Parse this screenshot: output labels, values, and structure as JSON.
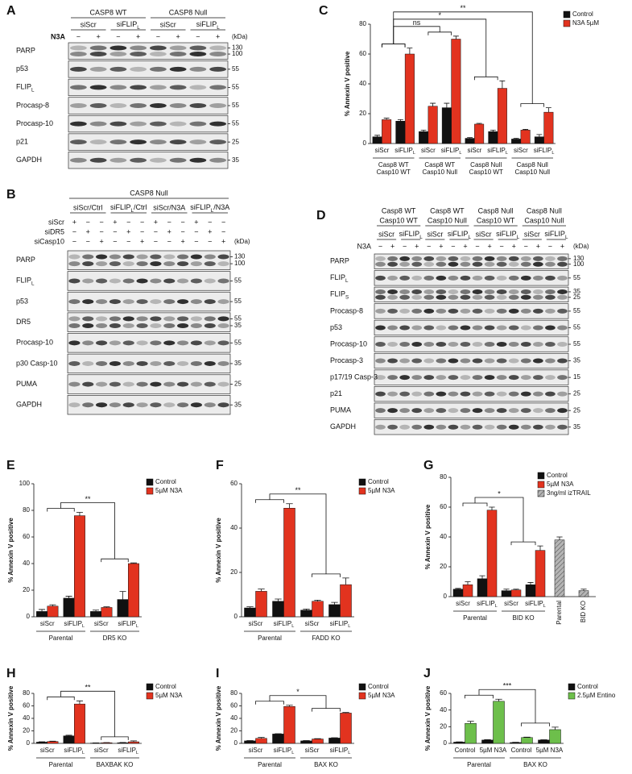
{
  "blots": [
    {
      "panel": "A",
      "groups": [
        "CASP8 WT",
        "CASP8 Null"
      ],
      "conditions": [
        "siScr",
        "siFLIPL",
        "siScr",
        "siFLIPL"
      ],
      "treatments": [
        {
          "name": "N3A",
          "signs": [
            "−",
            "+",
            "−",
            "+",
            "−",
            "+",
            "−",
            "+"
          ]
        }
      ],
      "kda": "(kDa)",
      "rows": [
        {
          "name": "PARP",
          "markers": [
            130,
            100
          ]
        },
        {
          "name": "p53",
          "markers": [
            55
          ]
        },
        {
          "name": "FLIPL",
          "markers": [
            55
          ]
        },
        {
          "name": "Procasp-8",
          "markers": [
            55
          ]
        },
        {
          "name": "Procasp-10",
          "markers": [
            55
          ]
        },
        {
          "name": "p21",
          "markers": [
            25
          ]
        },
        {
          "name": "GAPDH",
          "markers": [
            35
          ]
        }
      ]
    },
    {
      "panel": "B",
      "title": "CASP8 Null",
      "conditions": [
        "siScr/Ctrl",
        "siFLIPL/Ctrl",
        "siScr/N3A",
        "siFLIPL/N3A"
      ],
      "treatments": [
        {
          "name": "siScr",
          "signs": [
            "+",
            "−",
            "−",
            "+",
            "−",
            "−",
            "+",
            "−",
            "−",
            "+",
            "−",
            "−"
          ]
        },
        {
          "name": "siDR5",
          "signs": [
            "−",
            "+",
            "−",
            "−",
            "+",
            "−",
            "−",
            "+",
            "−",
            "−",
            "+",
            "−"
          ]
        },
        {
          "name": "siCasp10",
          "signs": [
            "−",
            "−",
            "+",
            "−",
            "−",
            "+",
            "−",
            "−",
            "+",
            "−",
            "−",
            "+"
          ]
        }
      ],
      "kda": "(kDa)",
      "rows": [
        {
          "name": "PARP",
          "markers": [
            130,
            100
          ]
        },
        {
          "name": "FLIPL",
          "markers": [
            55
          ]
        },
        {
          "name": "p53",
          "markers": [
            55
          ]
        },
        {
          "name": "DR5",
          "markers": [
            55,
            35
          ]
        },
        {
          "name": "Procasp-10",
          "markers": [
            55
          ]
        },
        {
          "name": "p30 Casp-10",
          "markers": [
            35
          ]
        },
        {
          "name": "PUMA",
          "markers": [
            25
          ]
        },
        {
          "name": "GAPDH",
          "markers": [
            35
          ]
        }
      ]
    },
    {
      "panel": "D",
      "groups": [
        [
          "Casp8 WT",
          "Casp10 WT"
        ],
        [
          "Casp8 WT",
          "Casp10 Null"
        ],
        [
          "Casp8 Null",
          "Casp10 WT"
        ],
        [
          "Casp8 Null",
          "Casp10 Null"
        ]
      ],
      "conditions": [
        "siScr",
        "siFLIPL",
        "siScr",
        "siFLIPL",
        "siScr",
        "siFLIPL",
        "siScr",
        "siFLIPL"
      ],
      "treatments": [
        {
          "name": "N3A",
          "signs": [
            "−",
            "+",
            "−",
            "+",
            "−",
            "+",
            "−",
            "+",
            "−",
            "+",
            "−",
            "+",
            "−",
            "+",
            "−",
            "+"
          ]
        }
      ],
      "kda": "(kDa)",
      "rows": [
        {
          "name": "PARP",
          "markers": [
            130,
            100
          ]
        },
        {
          "name": "FLIPL",
          "markers": [
            55
          ]
        },
        {
          "name": "FLIPS",
          "markers": [
            35,
            25
          ]
        },
        {
          "name": "Procasp-8",
          "markers": [
            55
          ]
        },
        {
          "name": "p53",
          "markers": [
            55
          ]
        },
        {
          "name": "Procasp-10",
          "markers": [
            55
          ]
        },
        {
          "name": "Procasp-3",
          "markers": [
            35
          ]
        },
        {
          "name": "p17/19 Casp-3",
          "markers": [
            15
          ]
        },
        {
          "name": "p21",
          "markers": [
            25
          ]
        },
        {
          "name": "PUMA",
          "markers": [
            25
          ]
        },
        {
          "name": "GAPDH",
          "markers": [
            35
          ]
        }
      ]
    }
  ],
  "chart_data": [
    {
      "panel": "C",
      "type": "bar",
      "ylabel": "% Annexin V positive",
      "ylim": [
        0,
        80
      ],
      "yticks": [
        0,
        20,
        40,
        60,
        80
      ],
      "categories": [
        "siScr",
        "siFLIPL",
        "siScr",
        "siFLIPL",
        "siScr",
        "siFLIPL",
        "siScr",
        "siFLIPL"
      ],
      "series": [
        {
          "name": "Control",
          "color": "#111111",
          "values": [
            4.5,
            15,
            8,
            24,
            3.5,
            8,
            3,
            4.5
          ],
          "errors": [
            1,
            1,
            1,
            3,
            0.5,
            1,
            0.5,
            1.5
          ]
        },
        {
          "name": "N3A 5µM",
          "color": "#e2331f",
          "values": [
            16,
            60,
            25,
            70,
            13,
            37,
            9,
            21
          ],
          "errors": [
            1,
            4,
            2,
            2,
            0.5,
            5,
            0.5,
            3
          ]
        }
      ],
      "groups": [
        [
          "Casp8 WT",
          "Casp10 WT"
        ],
        [
          "Casp8 WT",
          "Casp10 Null"
        ],
        [
          "Casp8 Null",
          "Casp10 WT"
        ],
        [
          "Casp8 Null",
          "Casp10 Null"
        ]
      ],
      "annotations": [
        "ns",
        "*",
        "**"
      ]
    },
    {
      "panel": "E",
      "type": "bar",
      "ylabel": "% Annexin V positive",
      "ylim": [
        0,
        100
      ],
      "yticks": [
        0,
        20,
        40,
        60,
        80,
        100
      ],
      "categories": [
        "siScr",
        "siFLIPL",
        "siScr",
        "siFLIPL"
      ],
      "series": [
        {
          "name": "Control",
          "color": "#111111",
          "values": [
            4,
            14,
            4,
            13
          ],
          "errors": [
            1.5,
            1.5,
            1,
            6
          ]
        },
        {
          "name": "5µM N3A",
          "color": "#e2331f",
          "values": [
            8,
            76,
            7,
            40
          ],
          "errors": [
            1,
            2.5,
            0.5,
            0.5
          ]
        }
      ],
      "groups": [
        "Parental",
        "DR5 KO"
      ],
      "annotations": [
        "**"
      ]
    },
    {
      "panel": "F",
      "type": "bar",
      "ylabel": "% Annexin V positive",
      "ylim": [
        0,
        60
      ],
      "yticks": [
        0,
        20,
        40,
        60
      ],
      "categories": [
        "siScr",
        "siFLIPL",
        "siScr",
        "siFLIPL"
      ],
      "series": [
        {
          "name": "Control",
          "color": "#111111",
          "values": [
            4,
            7,
            3,
            5.5
          ],
          "errors": [
            0.5,
            1,
            0.5,
            1
          ]
        },
        {
          "name": "5µM N3A",
          "color": "#e2331f",
          "values": [
            11.5,
            49,
            7,
            14.5
          ],
          "errors": [
            1,
            2,
            0.5,
            3
          ]
        }
      ],
      "groups": [
        "Parental",
        "FADD KO"
      ],
      "annotations": [
        "**"
      ]
    },
    {
      "panel": "G",
      "type": "bar",
      "ylabel": "% Annexin V positive",
      "ylim": [
        0,
        80
      ],
      "yticks": [
        0,
        20,
        40,
        60,
        80
      ],
      "categories": [
        "siScr",
        "siFLIPL",
        "siScr",
        "siFLIPL",
        "Parental",
        "BID KO"
      ],
      "series": [
        {
          "name": "Control",
          "color": "#111111",
          "values": [
            5,
            12,
            4,
            8,
            null,
            null
          ],
          "errors": [
            0.5,
            2,
            1,
            1.5,
            null,
            null
          ]
        },
        {
          "name": "5µM N3A",
          "color": "#e2331f",
          "values": [
            8,
            58,
            4.5,
            31,
            null,
            null
          ],
          "errors": [
            2,
            2,
            0.5,
            3,
            null,
            null
          ]
        },
        {
          "name": "3ng/ml izTRAIL",
          "color": "#9a9a9a",
          "hatch": true,
          "values": [
            null,
            null,
            null,
            null,
            38,
            4
          ],
          "errors": [
            null,
            null,
            null,
            null,
            2,
            1
          ]
        }
      ],
      "groups": [
        "Parental",
        "BID KO"
      ],
      "annotations": [
        "*"
      ]
    },
    {
      "panel": "H",
      "type": "bar",
      "ylabel": "% Annexin V positive",
      "ylim": [
        0,
        80
      ],
      "yticks": [
        0,
        20,
        40,
        60,
        80
      ],
      "categories": [
        "siScr",
        "siFLIPL",
        "siScr",
        "siFLIPL"
      ],
      "series": [
        {
          "name": "Control",
          "color": "#111111",
          "values": [
            2,
            12,
            0.5,
            1
          ],
          "errors": [
            0.5,
            1,
            0.2,
            0.5
          ]
        },
        {
          "name": "5µM N3A",
          "color": "#e2331f",
          "values": [
            3,
            63,
            1,
            2.5
          ],
          "errors": [
            0.5,
            5,
            0.3,
            1.5
          ]
        }
      ],
      "groups": [
        "Parental",
        "BAXBAK KO"
      ],
      "annotations": [
        "**"
      ]
    },
    {
      "panel": "I",
      "type": "bar",
      "ylabel": "% Annexin V positive",
      "ylim": [
        0,
        80
      ],
      "yticks": [
        0,
        20,
        40,
        60,
        80
      ],
      "categories": [
        "siScr",
        "siFLIPL",
        "siScr",
        "siFLIPL"
      ],
      "series": [
        {
          "name": "Control",
          "color": "#111111",
          "values": [
            4,
            15,
            4,
            8.5
          ],
          "errors": [
            0.5,
            0.5,
            0.5,
            0.5
          ]
        },
        {
          "name": "5µM N3A",
          "color": "#e2331f",
          "values": [
            8,
            59,
            7,
            48.5
          ],
          "errors": [
            1.5,
            2,
            0.5,
            1
          ]
        }
      ],
      "groups": [
        "Parental",
        "BAX KO"
      ],
      "annotations": [
        "*"
      ]
    },
    {
      "panel": "J",
      "type": "bar",
      "ylabel": "% Annexin V positive",
      "ylim": [
        0,
        60
      ],
      "yticks": [
        0,
        20,
        40,
        60
      ],
      "categories": [
        "Control",
        "5µM N3A",
        "Control",
        "5µM N3A"
      ],
      "series": [
        {
          "name": "Control",
          "color": "#111111",
          "values": [
            1.5,
            4,
            1,
            4
          ],
          "errors": [
            0.3,
            0.5,
            0.3,
            0.3
          ]
        },
        {
          "name": "2.5µM Entino",
          "color": "#6dbf4b",
          "values": [
            24,
            50.5,
            7,
            16.5
          ],
          "errors": [
            2.5,
            2.5,
            0.5,
            3
          ]
        }
      ],
      "groups": [
        "Parental",
        "BAX KO"
      ],
      "annotations": [
        "***"
      ]
    }
  ]
}
